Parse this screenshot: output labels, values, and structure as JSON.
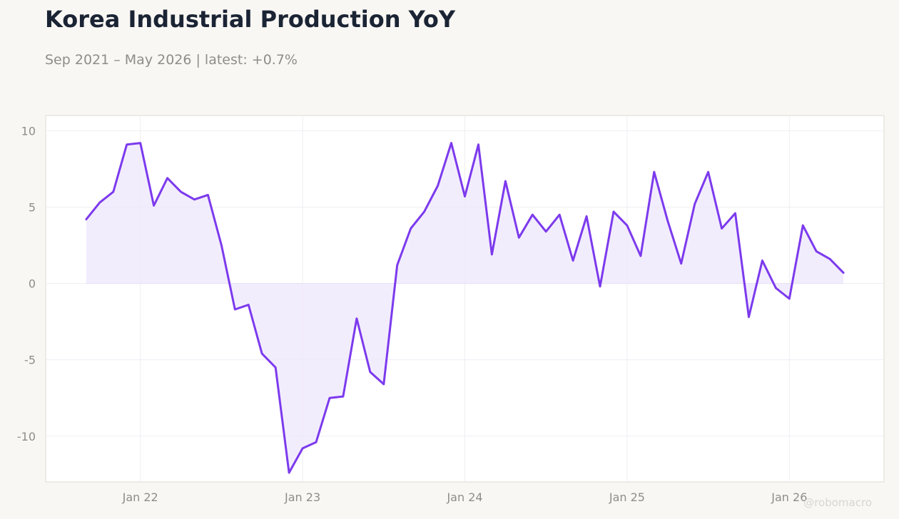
{
  "title": "Korea Industrial Production YoY",
  "subtitle": "Sep 2021 – May 2026 | latest: +0.7%",
  "watermark": "@robomacro",
  "colors": {
    "background": "#f9f7f4",
    "plot_background": "#ffffff",
    "line": "#7c3aed",
    "fill": "#ede7fc",
    "title": "#1b2434",
    "muted": "#8f8d8a"
  },
  "chart_data": {
    "type": "area",
    "title": "Korea Industrial Production YoY",
    "xlabel": "",
    "ylabel": "",
    "ylim": [
      -13,
      11
    ],
    "grid": true,
    "legend": "none",
    "y_ticks": [
      10,
      5,
      0,
      -5,
      -10
    ],
    "y_tick_labels": [
      "10",
      "5",
      "0",
      "-5",
      "-10"
    ],
    "x_ticks": [
      "2022-01",
      "2023-01",
      "2024-01",
      "2025-01",
      "2026-01"
    ],
    "x_tick_labels": [
      "Jan 22",
      "Jan 23",
      "Jan 24",
      "Jan 25",
      "Jan 26"
    ],
    "x_range": [
      "2021-06",
      "2026-08"
    ],
    "x": [
      "2021-09",
      "2021-10",
      "2021-11",
      "2021-12",
      "2022-01",
      "2022-02",
      "2022-03",
      "2022-04",
      "2022-05",
      "2022-06",
      "2022-07",
      "2022-08",
      "2022-09",
      "2022-10",
      "2022-11",
      "2022-12",
      "2023-01",
      "2023-02",
      "2023-03",
      "2023-04",
      "2023-05",
      "2023-06",
      "2023-07",
      "2023-08",
      "2023-09",
      "2023-10",
      "2023-11",
      "2023-12",
      "2024-01",
      "2024-02",
      "2024-03",
      "2024-04",
      "2024-05",
      "2024-06",
      "2024-07",
      "2024-08",
      "2024-09",
      "2024-10",
      "2024-11",
      "2024-12",
      "2025-01",
      "2025-02",
      "2025-03",
      "2025-04",
      "2025-05",
      "2025-06",
      "2025-07",
      "2025-08",
      "2025-09",
      "2025-10",
      "2025-11",
      "2025-12",
      "2026-01",
      "2026-02",
      "2026-03",
      "2026-04",
      "2026-05"
    ],
    "series": [
      {
        "values": [
          4.2,
          5.3,
          6.0,
          9.1,
          9.2,
          5.1,
          6.9,
          6.0,
          5.5,
          5.8,
          2.5,
          -1.7,
          -1.4,
          -4.6,
          -5.5,
          -12.4,
          -10.8,
          -10.4,
          -7.5,
          -7.4,
          -2.3,
          -5.8,
          -6.6,
          1.2,
          3.6,
          4.7,
          6.4,
          9.2,
          5.7,
          9.1,
          1.9,
          6.7,
          3.0,
          4.5,
          3.4,
          4.5,
          1.5,
          4.4,
          -0.2,
          4.7,
          3.8,
          1.8,
          7.3,
          4.1,
          1.3,
          5.2,
          7.3,
          3.6,
          4.6,
          -2.2,
          1.5,
          -0.3,
          -1.0,
          3.8,
          2.1,
          1.6,
          0.7
        ]
      }
    ]
  }
}
